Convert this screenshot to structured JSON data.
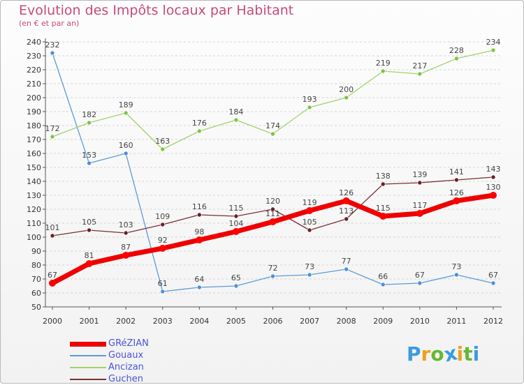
{
  "title": "Evolution des Impôts locaux par Habitant",
  "subtitle": "(en € et par an)",
  "chart_data": {
    "type": "line",
    "title": "Evolution des Impôts locaux par Habitant",
    "subtitle": "(en € et par an)",
    "x": [
      "2000",
      "2001",
      "2002",
      "2003",
      "2004",
      "2005",
      "2006",
      "2007",
      "2008",
      "2009",
      "2010",
      "2011",
      "2012"
    ],
    "ylim": [
      50,
      240
    ],
    "yticks": [
      50,
      60,
      70,
      80,
      90,
      100,
      110,
      120,
      130,
      140,
      150,
      160,
      170,
      180,
      190,
      200,
      210,
      220,
      230,
      240
    ],
    "grid": true,
    "legend_position": "bottom-left",
    "series": [
      {
        "name": "GRéZIAN",
        "color": "#ff0000",
        "values": [
          67,
          81,
          87,
          92,
          98,
          104,
          111,
          119,
          126,
          115,
          117,
          126,
          130
        ]
      },
      {
        "name": "Gouaux",
        "color": "#5b9bd5",
        "values": [
          232,
          153,
          160,
          61,
          64,
          65,
          72,
          73,
          77,
          66,
          67,
          73,
          67
        ]
      },
      {
        "name": "Ancizan",
        "color": "#92d050",
        "values": [
          172,
          182,
          189,
          163,
          176,
          184,
          174,
          193,
          200,
          219,
          217,
          228,
          234
        ]
      },
      {
        "name": "Guchen",
        "color": "#7b2f36",
        "values": [
          101,
          105,
          103,
          109,
          116,
          115,
          120,
          105,
          113,
          138,
          139,
          141,
          143
        ]
      }
    ]
  },
  "logo": {
    "letters": [
      "P",
      "r",
      "o",
      "x",
      "i",
      "t",
      "i"
    ],
    "colors": [
      "#3a9be0",
      "#f0a020",
      "#66b832",
      "#3a9be0",
      "#f0a020",
      "#66b832",
      "#3a9be0"
    ]
  }
}
